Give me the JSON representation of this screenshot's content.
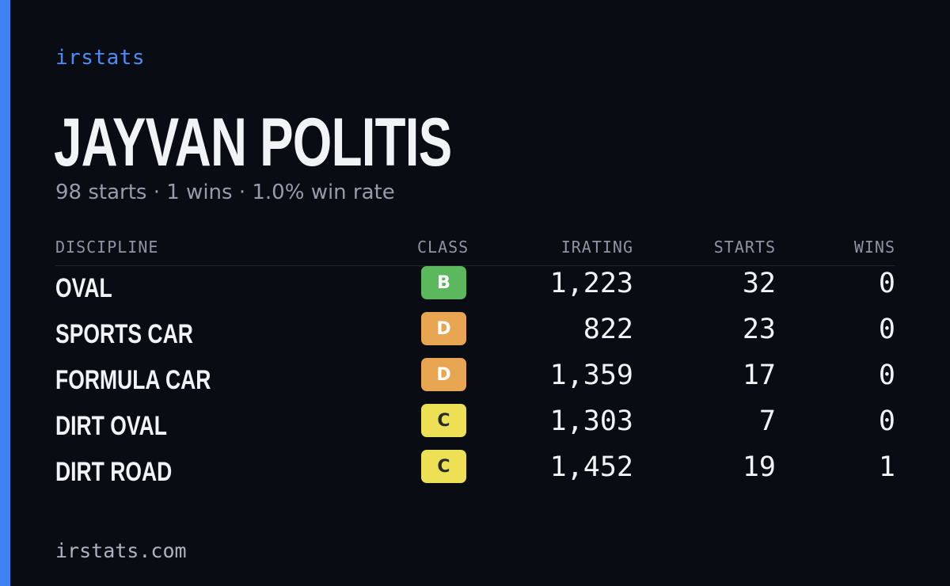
{
  "brand": "irstats",
  "driver": {
    "name": "JAYVAN POLITIS",
    "starts": "98 starts",
    "wins": "1 wins",
    "win_rate": "1.0% win rate",
    "separator": "·"
  },
  "table": {
    "headers": {
      "discipline": "DISCIPLINE",
      "class": "CLASS",
      "irating": "IRATING",
      "starts": "STARTS",
      "wins": "WINS"
    },
    "rows": [
      {
        "discipline": "OVAL",
        "class": "B",
        "class_color": "#5cb85c",
        "class_text_color": "#ffffff",
        "irating": "1,223",
        "starts": "32",
        "wins": "0"
      },
      {
        "discipline": "SPORTS CAR",
        "class": "D",
        "class_color": "#e9a652",
        "class_text_color": "#ffffff",
        "irating": "822",
        "starts": "23",
        "wins": "0"
      },
      {
        "discipline": "FORMULA CAR",
        "class": "D",
        "class_color": "#e9a652",
        "class_text_color": "#ffffff",
        "irating": "1,359",
        "starts": "17",
        "wins": "0"
      },
      {
        "discipline": "DIRT OVAL",
        "class": "C",
        "class_color": "#ede055",
        "class_text_color": "#2a2a2a",
        "irating": "1,303",
        "starts": "7",
        "wins": "0"
      },
      {
        "discipline": "DIRT ROAD",
        "class": "C",
        "class_color": "#ede055",
        "class_text_color": "#2a2a2a",
        "irating": "1,452",
        "starts": "19",
        "wins": "1"
      }
    ]
  },
  "footer": "irstats.com",
  "colors": {
    "background": "#0a0c13",
    "accent": "#3f82f3",
    "brand": "#4a8df6",
    "muted": "#969cab"
  }
}
